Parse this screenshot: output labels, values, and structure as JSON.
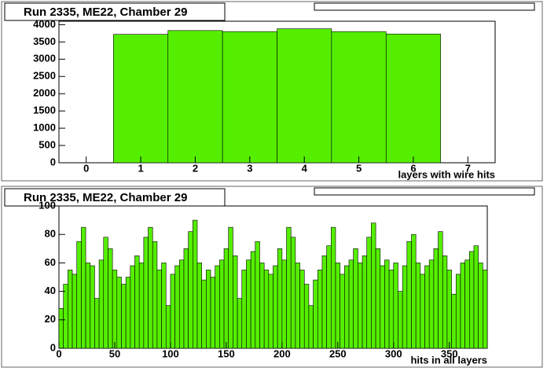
{
  "chart_data": [
    {
      "type": "histogram",
      "title": "Run 2335, ME22, Chamber 29",
      "x_label": "layers with wire hits",
      "bins": [
        0.5,
        1.5,
        2.5,
        3.5,
        4.5,
        5.5,
        6.5
      ],
      "values": [
        3720,
        3830,
        3800,
        3880,
        3800,
        3730
      ],
      "color": "#55ee00",
      "xlim": [
        -0.5,
        7.5
      ],
      "xticks": [
        0,
        1,
        2,
        3,
        4,
        5,
        6,
        7
      ],
      "ylim": [
        0,
        4100
      ],
      "yticks": [
        0,
        500,
        1000,
        1500,
        2000,
        2500,
        3000,
        3500,
        4000
      ]
    },
    {
      "type": "histogram",
      "title": "Run 2335, ME22, Chamber 29",
      "x_label": "hits in all layers",
      "bins": [
        0,
        4,
        8,
        12,
        16,
        20,
        24,
        28,
        32,
        36,
        40,
        44,
        48,
        52,
        56,
        60,
        64,
        68,
        72,
        76,
        80,
        84,
        88,
        92,
        96,
        100,
        104,
        108,
        112,
        116,
        120,
        124,
        128,
        132,
        136,
        140,
        144,
        148,
        152,
        156,
        160,
        164,
        168,
        172,
        176,
        180,
        184,
        188,
        192,
        196,
        200,
        204,
        208,
        212,
        216,
        220,
        224,
        228,
        232,
        236,
        240,
        244,
        248,
        252,
        256,
        260,
        264,
        268,
        272,
        276,
        280,
        284,
        288,
        292,
        296,
        300,
        304,
        308,
        312,
        316,
        320,
        324,
        328,
        332,
        336,
        340,
        344,
        348,
        352,
        356,
        360,
        364,
        368,
        372,
        376,
        380,
        384
      ],
      "values": [
        28,
        45,
        55,
        52,
        75,
        85,
        60,
        58,
        35,
        62,
        78,
        70,
        55,
        50,
        45,
        50,
        58,
        65,
        60,
        78,
        85,
        75,
        55,
        60,
        30,
        52,
        58,
        62,
        70,
        82,
        90,
        60,
        48,
        55,
        50,
        58,
        62,
        70,
        85,
        65,
        35,
        55,
        62,
        68,
        75,
        60,
        55,
        52,
        58,
        70,
        62,
        85,
        78,
        60,
        55,
        45,
        30,
        48,
        55,
        65,
        72,
        85,
        60,
        52,
        58,
        62,
        70,
        60,
        65,
        78,
        88,
        70,
        58,
        62,
        55,
        60,
        40,
        58,
        75,
        80,
        60,
        52,
        58,
        62,
        70,
        82,
        65,
        55,
        38,
        52,
        60,
        62,
        68,
        72,
        60,
        55
      ],
      "color": "#55ee00",
      "xlim": [
        0,
        384
      ],
      "xticks": [
        0,
        50,
        100,
        150,
        200,
        250,
        300,
        350
      ],
      "ylim": [
        0,
        100
      ],
      "yticks": [
        0,
        20,
        40,
        60,
        80,
        100
      ]
    }
  ]
}
